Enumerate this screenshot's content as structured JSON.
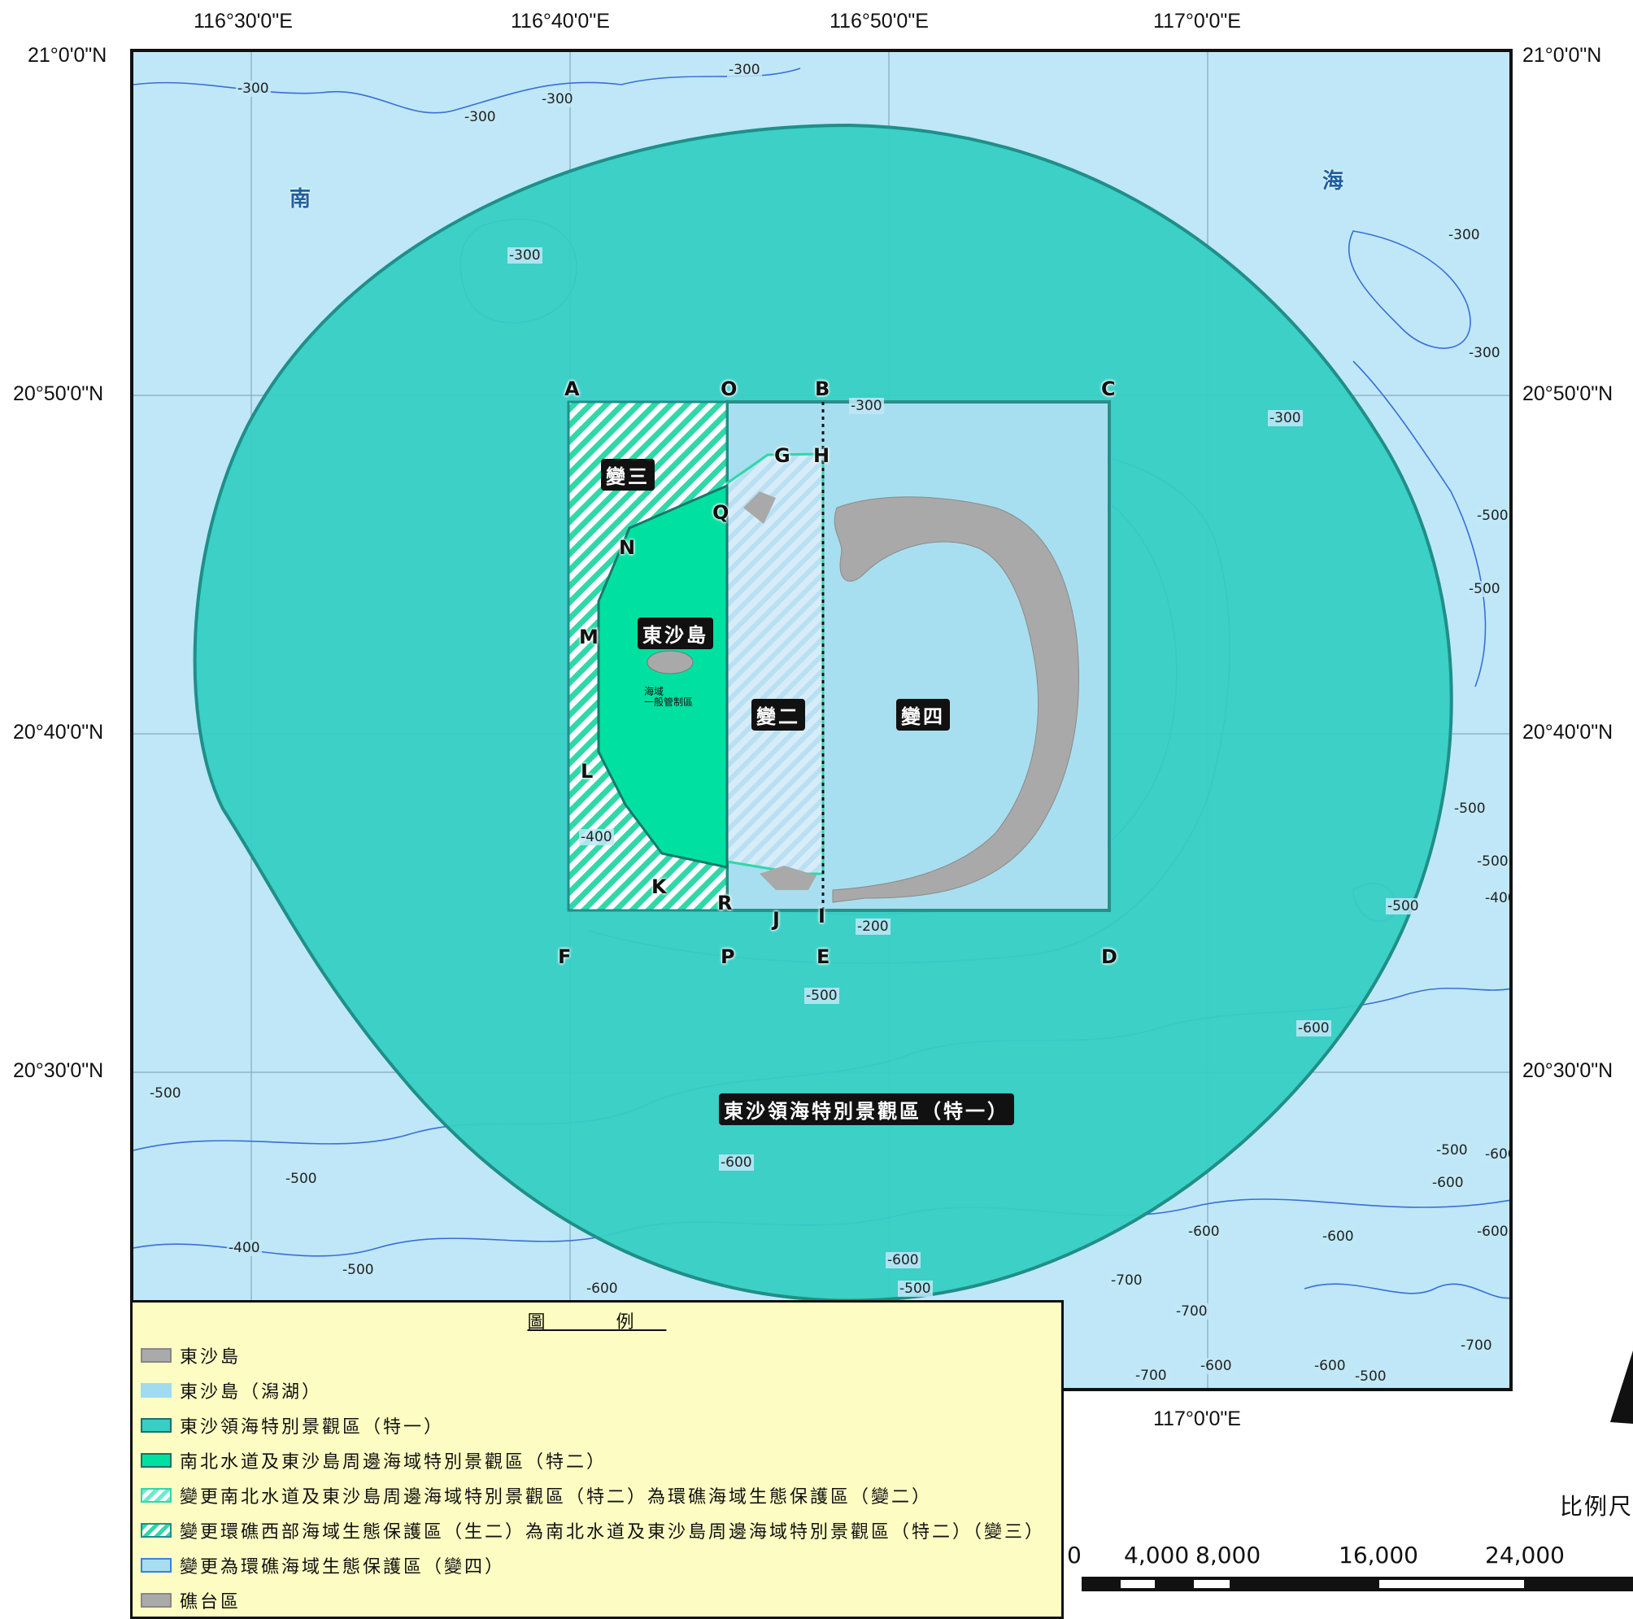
{
  "coords": {
    "top_lon": [
      "116°30'0\"E",
      "116°40'0\"E",
      "116°50'0\"E",
      "117°0'0\"E"
    ],
    "bottom_lon": "117°0'0\"E",
    "left_lat": [
      "21°0'0\"N",
      "20°50'0\"N",
      "20°40'0\"N",
      "20°30'0\"N"
    ],
    "right_lat": [
      "21°0'0\"N",
      "20°50'0\"N",
      "20°40'0\"N",
      "20°30'0\"N"
    ]
  },
  "sea_labels": {
    "south": "南",
    "sea": "海"
  },
  "zones": {
    "special_one": "東沙領海特別景觀區（特一）",
    "bian_er": "變二",
    "bian_san": "變三",
    "bian_si": "變四",
    "island": "東沙島",
    "island_small": "海域\n一般管制區"
  },
  "points": [
    "A",
    "O",
    "B",
    "C",
    "G",
    "H",
    "Q",
    "N",
    "M",
    "L",
    "K",
    "R",
    "J",
    "I",
    "F",
    "P",
    "E",
    "D"
  ],
  "depths": [
    "-300",
    "-300",
    "-300",
    "-300",
    "-300",
    "-300",
    "-300",
    "-300",
    "-300",
    "-500",
    "-500",
    "-500",
    "-400",
    "-500",
    "-400",
    "-500",
    "-200",
    "-500",
    "-600",
    "-500",
    "-600",
    "-500",
    "-400",
    "-500",
    "-600",
    "-600",
    "-500",
    "-600",
    "-500",
    "-600",
    "-600",
    "-600",
    "-700",
    "-700",
    "-700",
    "-700",
    "-600",
    "-600",
    "-500",
    "-600"
  ],
  "legend": {
    "title": "圖 例",
    "items": [
      {
        "label": "東沙島",
        "color": "#aaaaaa",
        "pattern": "solid"
      },
      {
        "label": "東沙島（潟湖）",
        "color": "#9fdcef",
        "pattern": "solid"
      },
      {
        "label": "東沙領海特別景觀區（特一）",
        "color": "#35cfc4",
        "pattern": "solid"
      },
      {
        "label": "南北水道及東沙島周邊海域特別景觀區（特二）",
        "color": "#00e0a0",
        "pattern": "solid"
      },
      {
        "label": "變更南北水道及東沙島周邊海域特別景觀區（特二）為環礁海域生態保護區（變二）",
        "color": "#6fe8d0",
        "pattern": "hatch"
      },
      {
        "label": "變更環礁西部海域生態保護區（生二）為南北水道及東沙島周邊海域特別景觀區（特二）（變三）",
        "color": "#2fd8a8",
        "pattern": "hatch"
      },
      {
        "label": "變更為環礁海域生態保護區（變四）",
        "color": "#3a7fe0",
        "pattern": "outline"
      },
      {
        "label": "礁台區",
        "color": "#aaaaaa",
        "pattern": "solid"
      }
    ]
  },
  "scale": {
    "title": "比例尺",
    "ticks": [
      "0",
      "4,000",
      "8,000",
      "16,000",
      "24,000"
    ]
  }
}
